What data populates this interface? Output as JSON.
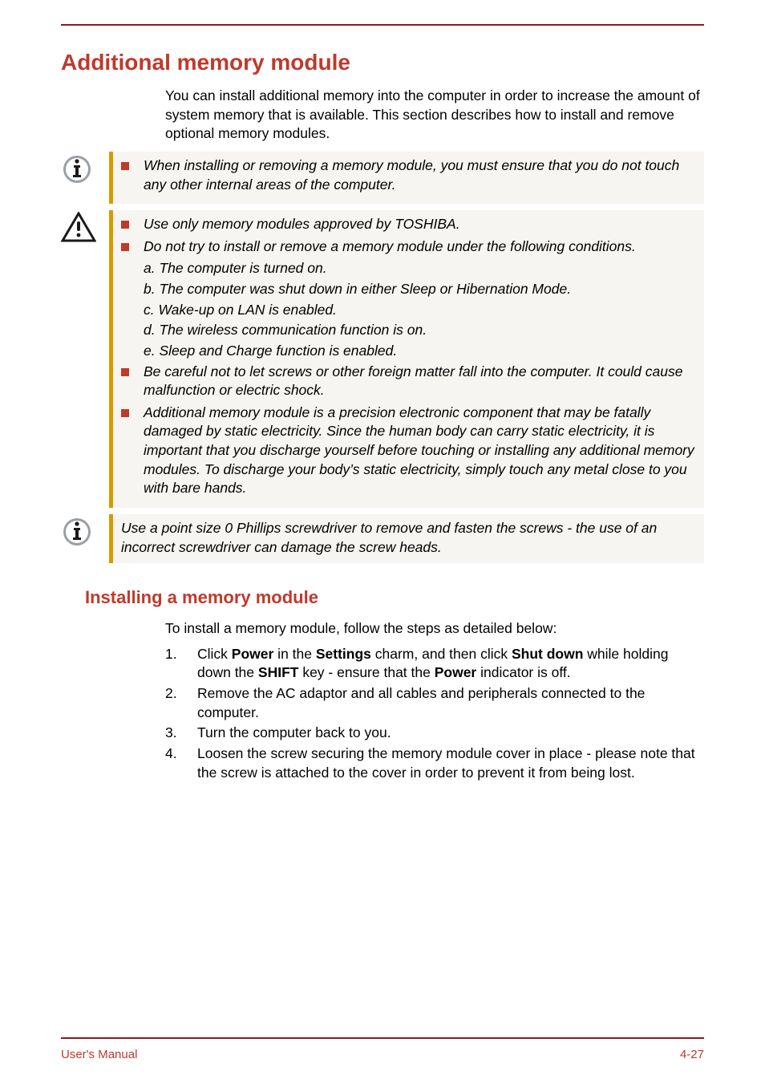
{
  "colors": {
    "accent_rule": "#8b1a1a",
    "heading_text": "#c0392b",
    "callout_bar": "#d89a00",
    "callout_bg": "#f6f5f2",
    "bullet_square": "#c0392b",
    "footer_text": "#c0392b",
    "body_text": "#000000"
  },
  "typography": {
    "h1_size_pt": 21,
    "h2_size_pt": 16,
    "body_size_pt": 13,
    "font_family": "Arial"
  },
  "heading": "Additional memory module",
  "intro": "You can install additional memory into the computer in order to increase the amount of system memory that is available. This section describes how to install and remove optional memory modules.",
  "callout_info_1": {
    "icon": "info",
    "bullets": [
      "When installing or removing a memory module, you must ensure that you do not touch any other internal areas of the computer."
    ]
  },
  "callout_warning": {
    "icon": "warning",
    "bullets": [
      {
        "text": "Use only memory modules approved by TOSHIBA."
      },
      {
        "text": "Do not try to install or remove a memory module under the following conditions.",
        "subs": [
          "a. The computer is turned on.",
          "b. The computer was shut down in either Sleep or Hibernation Mode.",
          "c. Wake-up on LAN is enabled.",
          "d. The wireless communication function is on.",
          "e. Sleep and Charge function is enabled."
        ]
      },
      {
        "text": "Be careful not to let screws or other foreign matter fall into the computer. It could cause malfunction or electric shock."
      },
      {
        "text": "Additional memory module is a precision electronic component that may be fatally damaged by static electricity. Since the human body can carry static electricity, it is important that you discharge yourself before touching or installing any additional memory modules. To discharge your body’s static electricity, simply touch any metal close to you with bare hands."
      }
    ]
  },
  "callout_info_2": {
    "icon": "info",
    "text": "Use a point size 0 Phillips screwdriver to remove and fasten the screws - the use of an incorrect screwdriver can damage the screw heads."
  },
  "subheading": "Installing a memory module",
  "install_lead": "To install a memory module, follow the steps as detailed below:",
  "steps": [
    {
      "n": "1.",
      "pre": "Click ",
      "b1": "Power",
      "mid1": " in the ",
      "b2": "Settings",
      "mid2": " charm, and then click ",
      "b3": "Shut down",
      "mid3": " while holding down the ",
      "b4": "SHIFT",
      "mid4": " key - ensure that the ",
      "b5": "Power",
      "post": " indicator is off."
    },
    {
      "n": "2.",
      "plain": "Remove the AC adaptor and all cables and peripherals connected to the computer."
    },
    {
      "n": "3.",
      "plain": "Turn the computer back to you."
    },
    {
      "n": "4.",
      "plain": "Loosen the screw securing the memory module cover in place - please note that the screw is attached to the cover in order to prevent it from being lost."
    }
  ],
  "footer_left": "User's Manual",
  "footer_right": "4-27"
}
